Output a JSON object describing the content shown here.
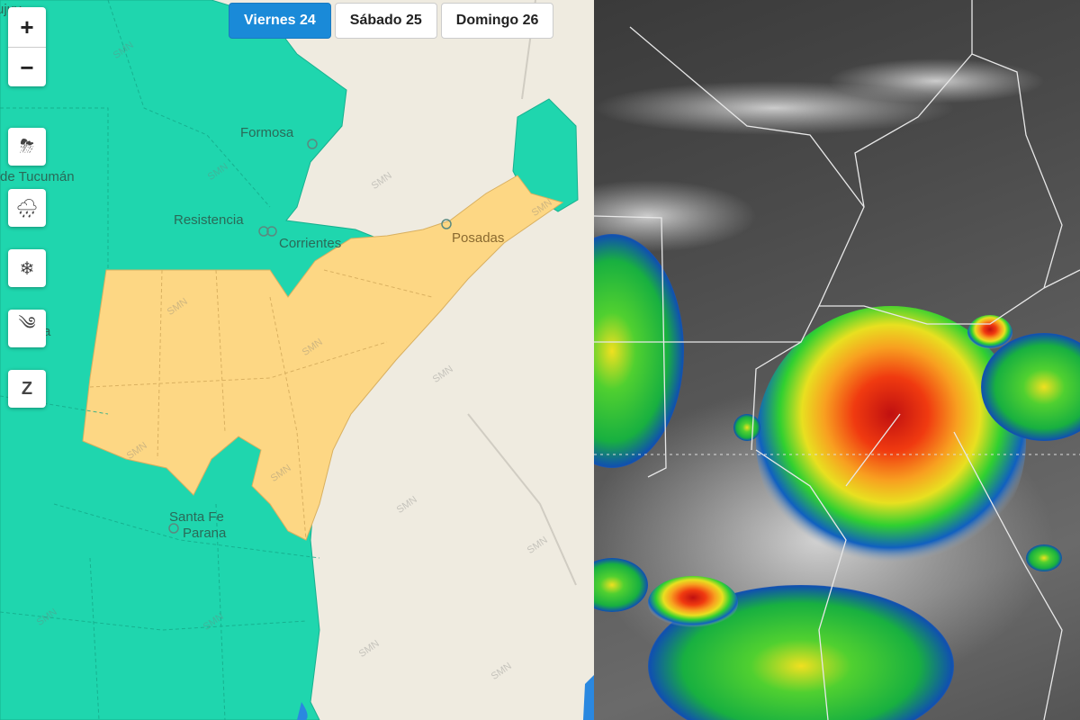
{
  "map": {
    "zoom_in_label": "+",
    "zoom_out_label": "−",
    "tabs": [
      {
        "label": "Viernes 24",
        "active": true
      },
      {
        "label": "Sábado 25",
        "active": false
      },
      {
        "label": "Domingo 26",
        "active": false
      }
    ],
    "tools": [
      {
        "icon": "thunderstorm-icon",
        "glyph": "⛈"
      },
      {
        "icon": "rain-icon",
        "glyph": "🌧"
      },
      {
        "icon": "snow-icon",
        "glyph": "❄"
      },
      {
        "icon": "wind-icon",
        "glyph": "༄"
      },
      {
        "icon": "zonda-icon",
        "glyph": "Z"
      }
    ],
    "places": {
      "jujuy": "ujuy",
      "tucuman": "de Tucumán",
      "formosa": "Formosa",
      "resistencia": "Resistencia",
      "corrientes": "Corrientes",
      "posadas": "Posadas",
      "santa_fe": "Santa Fe",
      "parana": "Parana",
      "partial": "a"
    },
    "watermark": "SMN",
    "colors": {
      "alert_green": "#1fd6ae",
      "alert_yellow": "#fdd784",
      "no_data": "#efebe0",
      "active_tab": "#1a8ad8"
    }
  }
}
